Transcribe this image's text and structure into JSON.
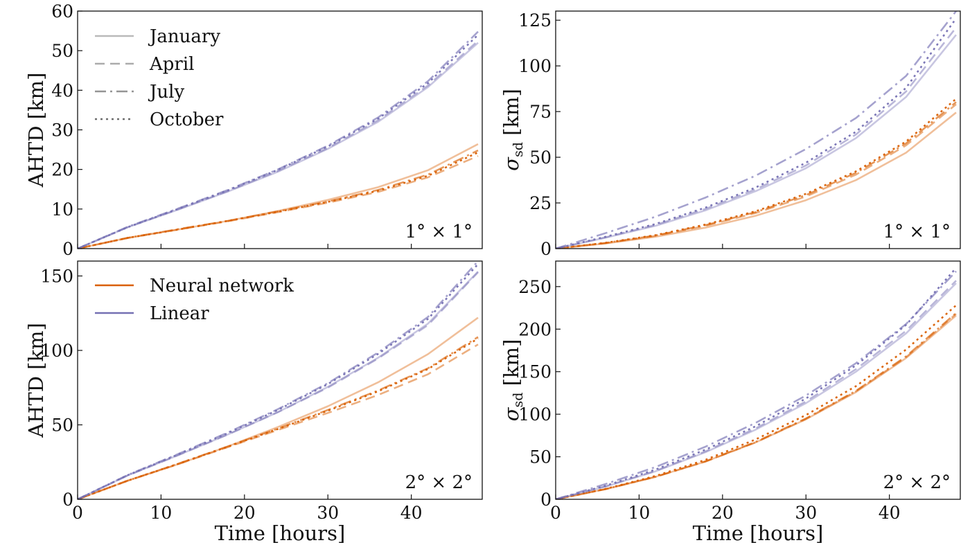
{
  "figure": {
    "xlabel": "Time [hours]",
    "legend_months_title": "",
    "legend_models_title": ""
  },
  "legend_months": [
    {
      "label": "January",
      "dash": "solid",
      "opacity": 0.45
    },
    {
      "label": "April",
      "dash": "dashed",
      "opacity": 0.55
    },
    {
      "label": "July",
      "dash": "dashdot",
      "opacity": 0.7
    },
    {
      "label": "October",
      "dash": "dotted",
      "opacity": 0.95
    }
  ],
  "legend_models": [
    {
      "label": "Neural network",
      "color": "#d95f02"
    },
    {
      "label": "Linear",
      "color": "#7570b3"
    }
  ],
  "colors": {
    "neural": "#d95f02",
    "linear": "#7570b3",
    "axis": "#111111"
  },
  "chart_data": [
    {
      "type": "line",
      "panel": "top-left",
      "ylabel": "AHTD [km]",
      "annotation": "1° × 1°",
      "xlim": [
        0,
        48.5
      ],
      "ylim": [
        0,
        60
      ],
      "xticks": [
        0,
        10,
        20,
        30,
        40
      ],
      "yticks": [
        0,
        10,
        20,
        30,
        40,
        50,
        60
      ],
      "x": [
        0,
        6,
        12,
        18,
        24,
        30,
        36,
        42,
        48
      ],
      "series": [
        {
          "name": "Linear January",
          "model": "linear",
          "month": "January",
          "values": [
            0,
            5.4,
            9.8,
            14.4,
            19.4,
            25.2,
            32.0,
            40.8,
            52.0
          ]
        },
        {
          "name": "Linear April",
          "model": "linear",
          "month": "April",
          "values": [
            0,
            5.4,
            9.9,
            14.5,
            19.6,
            25.4,
            32.4,
            41.2,
            52.5
          ]
        },
        {
          "name": "Linear July",
          "model": "linear",
          "month": "July",
          "values": [
            0,
            5.5,
            10.1,
            14.8,
            20.0,
            26.0,
            33.1,
            42.3,
            54.8
          ]
        },
        {
          "name": "Linear October",
          "model": "linear",
          "month": "October",
          "values": [
            0,
            5.4,
            10.0,
            14.7,
            19.9,
            25.8,
            32.8,
            41.8,
            54.0
          ]
        },
        {
          "name": "Neural network January",
          "model": "neural",
          "month": "January",
          "values": [
            0,
            2.7,
            4.8,
            7.0,
            9.5,
            12.3,
            15.5,
            19.8,
            26.4
          ]
        },
        {
          "name": "Neural network April",
          "model": "neural",
          "month": "April",
          "values": [
            0,
            2.7,
            4.8,
            6.9,
            9.2,
            11.6,
            14.3,
            18.0,
            23.4
          ]
        },
        {
          "name": "Neural network July",
          "model": "neural",
          "month": "July",
          "values": [
            0,
            2.7,
            4.9,
            7.0,
            9.4,
            11.9,
            14.8,
            18.7,
            24.8
          ]
        },
        {
          "name": "Neural network October",
          "model": "neural",
          "month": "October",
          "values": [
            0,
            2.7,
            4.8,
            7.0,
            9.3,
            11.8,
            14.6,
            18.4,
            24.3
          ]
        }
      ]
    },
    {
      "type": "line",
      "panel": "top-right",
      "ylabel": "σsd [km]",
      "annotation": "1° × 1°",
      "xlim": [
        0,
        48.5
      ],
      "ylim": [
        0,
        130
      ],
      "xticks": [
        0,
        10,
        20,
        30,
        40
      ],
      "yticks": [
        0,
        25,
        50,
        75,
        100,
        125
      ],
      "x": [
        0,
        6,
        12,
        18,
        24,
        30,
        36,
        42,
        48
      ],
      "series": [
        {
          "name": "Linear January",
          "model": "linear",
          "month": "January",
          "values": [
            0,
            6.0,
            12.5,
            21.0,
            31.5,
            44.0,
            60.5,
            83.0,
            117.0
          ]
        },
        {
          "name": "Linear April",
          "model": "linear",
          "month": "April",
          "values": [
            0,
            6.2,
            13.0,
            21.8,
            32.5,
            45.5,
            62.5,
            86.0,
            121.0
          ]
        },
        {
          "name": "Linear July",
          "model": "linear",
          "month": "July",
          "values": [
            0,
            8.5,
            17.5,
            28.0,
            40.0,
            54.5,
            71.5,
            94.5,
            130.0
          ]
        },
        {
          "name": "Linear October",
          "model": "linear",
          "month": "October",
          "values": [
            0,
            6.5,
            13.5,
            22.5,
            33.5,
            47.0,
            64.0,
            88.0,
            126.0
          ]
        },
        {
          "name": "Neural network January",
          "model": "neural",
          "month": "January",
          "values": [
            0,
            2.8,
            6.5,
            11.5,
            18.0,
            26.5,
            37.5,
            52.5,
            74.5
          ]
        },
        {
          "name": "Neural network April",
          "model": "neural",
          "month": "April",
          "values": [
            0,
            3.0,
            7.0,
            12.5,
            19.5,
            28.5,
            40.5,
            56.5,
            79.0
          ]
        },
        {
          "name": "Neural network July",
          "model": "neural",
          "month": "July",
          "values": [
            0,
            3.1,
            7.2,
            12.9,
            20.0,
            29.3,
            41.5,
            57.6,
            80.2
          ]
        },
        {
          "name": "Neural network October",
          "model": "neural",
          "month": "October",
          "values": [
            0,
            3.2,
            7.4,
            13.2,
            20.5,
            30.0,
            42.3,
            58.6,
            82.0
          ]
        }
      ]
    },
    {
      "type": "line",
      "panel": "bottom-left",
      "ylabel": "AHTD [km]",
      "annotation": "2° × 2°",
      "xlim": [
        0,
        48.5
      ],
      "ylim": [
        0,
        160
      ],
      "xticks": [
        0,
        10,
        20,
        30,
        40
      ],
      "yticks": [
        0,
        50,
        100,
        150
      ],
      "x": [
        0,
        6,
        12,
        18,
        24,
        30,
        36,
        42,
        48
      ],
      "series": [
        {
          "name": "Linear January",
          "model": "linear",
          "month": "January",
          "values": [
            0,
            16.0,
            29.5,
            43.5,
            58.5,
            75.5,
            95.0,
            118.0,
            153.0
          ]
        },
        {
          "name": "Linear April",
          "model": "linear",
          "month": "April",
          "values": [
            0,
            16.0,
            29.5,
            43.5,
            58.5,
            75.0,
            94.5,
            117.0,
            152.5
          ]
        },
        {
          "name": "Linear July",
          "model": "linear",
          "month": "July",
          "values": [
            0,
            16.3,
            30.3,
            44.8,
            60.5,
            78.0,
            98.5,
            122.5,
            160.0
          ]
        },
        {
          "name": "Linear October",
          "model": "linear",
          "month": "October",
          "values": [
            0,
            16.2,
            30.0,
            44.4,
            60.0,
            77.4,
            97.6,
            121.2,
            158.0
          ]
        },
        {
          "name": "Neural network January",
          "model": "neural",
          "month": "January",
          "values": [
            0,
            12.5,
            23.5,
            35.5,
            48.5,
            62.5,
            78.5,
            97.5,
            122.0
          ]
        },
        {
          "name": "Neural network April",
          "model": "neural",
          "month": "April",
          "values": [
            0,
            12.5,
            23.5,
            35.0,
            46.5,
            58.0,
            70.0,
            84.0,
            104.0
          ]
        },
        {
          "name": "Neural network July",
          "model": "neural",
          "month": "July",
          "values": [
            0,
            12.5,
            23.8,
            35.5,
            47.5,
            60.0,
            73.0,
            88.0,
            109.0
          ]
        },
        {
          "name": "Neural network October",
          "model": "neural",
          "month": "October",
          "values": [
            0,
            12.5,
            23.7,
            35.3,
            47.2,
            59.5,
            72.5,
            87.5,
            108.0
          ]
        }
      ]
    },
    {
      "type": "line",
      "panel": "bottom-right",
      "ylabel": "σsd [km]",
      "annotation": "2° × 2°",
      "xlim": [
        0,
        48.5
      ],
      "ylim": [
        0,
        280
      ],
      "xticks": [
        0,
        10,
        20,
        30,
        40
      ],
      "yticks": [
        0,
        50,
        100,
        150,
        200,
        250
      ],
      "x": [
        0,
        6,
        12,
        18,
        24,
        30,
        36,
        42,
        48
      ],
      "series": [
        {
          "name": "Linear January",
          "model": "linear",
          "month": "January",
          "values": [
            0,
            15.0,
            33.0,
            55.5,
            82.0,
            113.0,
            150.0,
            195.0,
            254.0
          ]
        },
        {
          "name": "Linear April",
          "model": "linear",
          "month": "April",
          "values": [
            0,
            15.3,
            33.5,
            56.5,
            83.5,
            115.0,
            153.0,
            198.0,
            257.0
          ]
        },
        {
          "name": "Linear July",
          "model": "linear",
          "month": "July",
          "values": [
            0,
            18.0,
            38.0,
            62.0,
            90.0,
            122.0,
            160.0,
            206.0,
            268.0
          ]
        },
        {
          "name": "Linear October",
          "model": "linear",
          "month": "October",
          "values": [
            0,
            16.0,
            35.0,
            58.5,
            86.0,
            118.5,
            157.5,
            205.0,
            272.0
          ]
        },
        {
          "name": "Neural network January",
          "model": "neural",
          "month": "January",
          "values": [
            0,
            12.0,
            26.5,
            44.5,
            67.0,
            94.0,
            126.0,
            166.0,
            216.0
          ]
        },
        {
          "name": "Neural network April",
          "model": "neural",
          "month": "April",
          "values": [
            0,
            12.0,
            26.5,
            44.5,
            67.0,
            94.5,
            127.0,
            167.0,
            218.0
          ]
        },
        {
          "name": "Neural network July",
          "model": "neural",
          "month": "July",
          "values": [
            0,
            12.0,
            26.5,
            44.8,
            67.5,
            95.0,
            127.5,
            168.0,
            219.0
          ]
        },
        {
          "name": "Neural network October",
          "model": "neural",
          "month": "October",
          "values": [
            0,
            12.3,
            27.5,
            46.5,
            70.5,
            99.0,
            133.0,
            176.0,
            228.0
          ]
        }
      ]
    }
  ]
}
